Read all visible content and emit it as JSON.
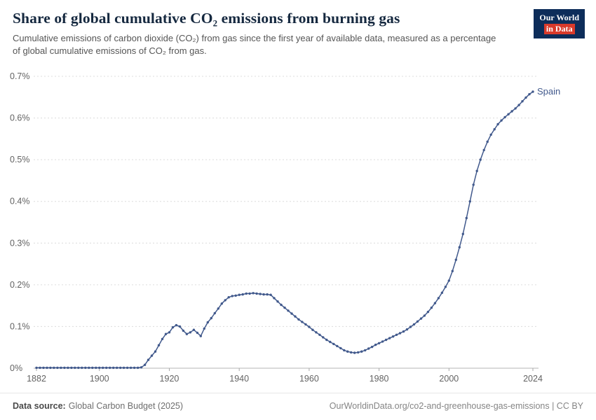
{
  "header": {
    "title": "Share of global cumulative CO₂ emissions from burning gas",
    "subtitle": "Cumulative emissions of carbon dioxide (CO₂) from gas since the first year of available data, measured as a percentage of global cumulative emissions of CO₂ from gas.",
    "logo_line1": "Our World",
    "logo_line2": "in Data"
  },
  "footer": {
    "source_label": "Data source:",
    "source_value": "Global Carbon Budget (2025)",
    "url_text": "OurWorldinData.org/co2-and-greenhouse-gas-emissions | CC BY"
  },
  "chart_data": {
    "type": "line",
    "title": "Share of global cumulative CO₂ emissions from burning gas",
    "xlabel": "",
    "ylabel": "",
    "xlim": [
      1882,
      2024
    ],
    "ylim": [
      0,
      0.7
    ],
    "xticks": [
      1882,
      1900,
      1920,
      1940,
      1960,
      1980,
      2000,
      2024
    ],
    "yticks": [
      0,
      0.1,
      0.2,
      0.3,
      0.4,
      0.5,
      0.6,
      0.7
    ],
    "ytick_labels": [
      "0%",
      "0.1%",
      "0.2%",
      "0.3%",
      "0.4%",
      "0.5%",
      "0.6%",
      "0.7%"
    ],
    "grid": "horizontal-dashed",
    "legend": "series-end-label",
    "series": [
      {
        "name": "Spain",
        "color": "#41598c",
        "x": [
          1882,
          1883,
          1884,
          1885,
          1886,
          1887,
          1888,
          1889,
          1890,
          1891,
          1892,
          1893,
          1894,
          1895,
          1896,
          1897,
          1898,
          1899,
          1900,
          1901,
          1902,
          1903,
          1904,
          1905,
          1906,
          1907,
          1908,
          1909,
          1910,
          1911,
          1912,
          1913,
          1914,
          1915,
          1916,
          1917,
          1918,
          1919,
          1920,
          1921,
          1922,
          1923,
          1924,
          1925,
          1926,
          1927,
          1928,
          1929,
          1930,
          1931,
          1932,
          1933,
          1934,
          1935,
          1936,
          1937,
          1938,
          1939,
          1940,
          1941,
          1942,
          1943,
          1944,
          1945,
          1946,
          1947,
          1948,
          1949,
          1950,
          1951,
          1952,
          1953,
          1954,
          1955,
          1956,
          1957,
          1958,
          1959,
          1960,
          1961,
          1962,
          1963,
          1964,
          1965,
          1966,
          1967,
          1968,
          1969,
          1970,
          1971,
          1972,
          1973,
          1974,
          1975,
          1976,
          1977,
          1978,
          1979,
          1980,
          1981,
          1982,
          1983,
          1984,
          1985,
          1986,
          1987,
          1988,
          1989,
          1990,
          1991,
          1992,
          1993,
          1994,
          1995,
          1996,
          1997,
          1998,
          1999,
          2000,
          2001,
          2002,
          2003,
          2004,
          2005,
          2006,
          2007,
          2008,
          2009,
          2010,
          2011,
          2012,
          2013,
          2014,
          2015,
          2016,
          2017,
          2018,
          2019,
          2020,
          2021,
          2022,
          2023,
          2024
        ],
        "y": [
          0.001,
          0.001,
          0.001,
          0.001,
          0.001,
          0.001,
          0.001,
          0.001,
          0.001,
          0.001,
          0.001,
          0.001,
          0.001,
          0.001,
          0.001,
          0.001,
          0.001,
          0.001,
          0.001,
          0.001,
          0.001,
          0.001,
          0.001,
          0.001,
          0.001,
          0.001,
          0.001,
          0.001,
          0.001,
          0.001,
          0.002,
          0.008,
          0.02,
          0.03,
          0.04,
          0.055,
          0.07,
          0.082,
          0.086,
          0.098,
          0.103,
          0.1,
          0.09,
          0.082,
          0.086,
          0.092,
          0.085,
          0.077,
          0.095,
          0.11,
          0.12,
          0.132,
          0.143,
          0.155,
          0.163,
          0.17,
          0.173,
          0.174,
          0.176,
          0.177,
          0.179,
          0.179,
          0.18,
          0.179,
          0.178,
          0.177,
          0.177,
          0.176,
          0.168,
          0.16,
          0.152,
          0.145,
          0.138,
          0.131,
          0.124,
          0.117,
          0.111,
          0.105,
          0.099,
          0.092,
          0.086,
          0.08,
          0.074,
          0.068,
          0.063,
          0.058,
          0.053,
          0.048,
          0.043,
          0.04,
          0.038,
          0.037,
          0.038,
          0.04,
          0.043,
          0.047,
          0.051,
          0.056,
          0.06,
          0.064,
          0.068,
          0.072,
          0.076,
          0.08,
          0.084,
          0.088,
          0.093,
          0.099,
          0.105,
          0.112,
          0.119,
          0.126,
          0.135,
          0.145,
          0.156,
          0.168,
          0.181,
          0.195,
          0.21,
          0.233,
          0.26,
          0.29,
          0.322,
          0.36,
          0.4,
          0.44,
          0.473,
          0.5,
          0.523,
          0.543,
          0.56,
          0.573,
          0.585,
          0.594,
          0.602,
          0.609,
          0.616,
          0.623,
          0.631,
          0.64,
          0.649,
          0.657,
          0.663
        ]
      }
    ]
  }
}
